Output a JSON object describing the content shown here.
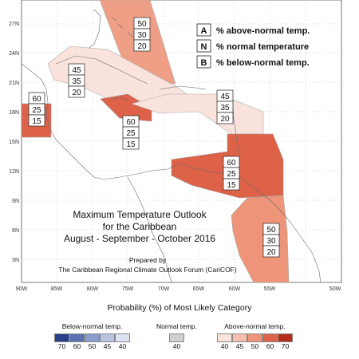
{
  "map": {
    "title_lines": [
      "Maximum Temperature Outlook",
      "for the Caribbean",
      "August - September - October 2016"
    ],
    "credit_lines": [
      "Prepared by",
      "The Caribbean Regional Climate Outlook Forum (CariCOF)"
    ],
    "lat_labels": [
      "27N",
      "24N",
      "21N",
      "18N",
      "15N",
      "12N",
      "9N",
      "6N",
      "3N"
    ],
    "lon_labels": [
      "90W",
      "85W",
      "80W",
      "75W",
      "70W",
      "65W",
      "60W",
      "55W",
      "50W"
    ],
    "key": [
      {
        "letter": "A",
        "text": "% above-normal temp."
      },
      {
        "letter": "N",
        "text": "% normal temperature"
      },
      {
        "letter": "B",
        "text": "% below-normal temp."
      }
    ],
    "probability_boxes": [
      {
        "region": "bahamas",
        "values": [
          "50",
          "30",
          "20"
        ]
      },
      {
        "region": "greater-antilles",
        "values": [
          "45",
          "35",
          "20"
        ]
      },
      {
        "region": "belize",
        "values": [
          "60",
          "25",
          "15"
        ]
      },
      {
        "region": "jamaica",
        "values": [
          "60",
          "25",
          "15"
        ]
      },
      {
        "region": "lesser-antilles",
        "values": [
          "45",
          "35",
          "20"
        ]
      },
      {
        "region": "southern-caribbean",
        "values": [
          "60",
          "25",
          "15"
        ]
      },
      {
        "region": "guianas",
        "values": [
          "50",
          "30",
          "20"
        ]
      }
    ]
  },
  "legend": {
    "heading": "Probability (%) of Most Likely Category",
    "below": {
      "label": "Below-normal temp.",
      "values": [
        "70",
        "60",
        "50",
        "45",
        "40"
      ],
      "colors": [
        "#283f8c",
        "#5a70b0",
        "#8c9ccc",
        "#b8c3e2",
        "#dde3f3"
      ]
    },
    "normal": {
      "label": "Normal temp.",
      "values": [
        "40"
      ],
      "colors": [
        "#cfcfcf"
      ]
    },
    "above": {
      "label": "Above-normal temp.",
      "values": [
        "40",
        "45",
        "50",
        "60",
        "70"
      ],
      "colors": [
        "#fbe3dd",
        "#f6c0af",
        "#ee9479",
        "#de6248",
        "#b32c1c"
      ]
    }
  }
}
